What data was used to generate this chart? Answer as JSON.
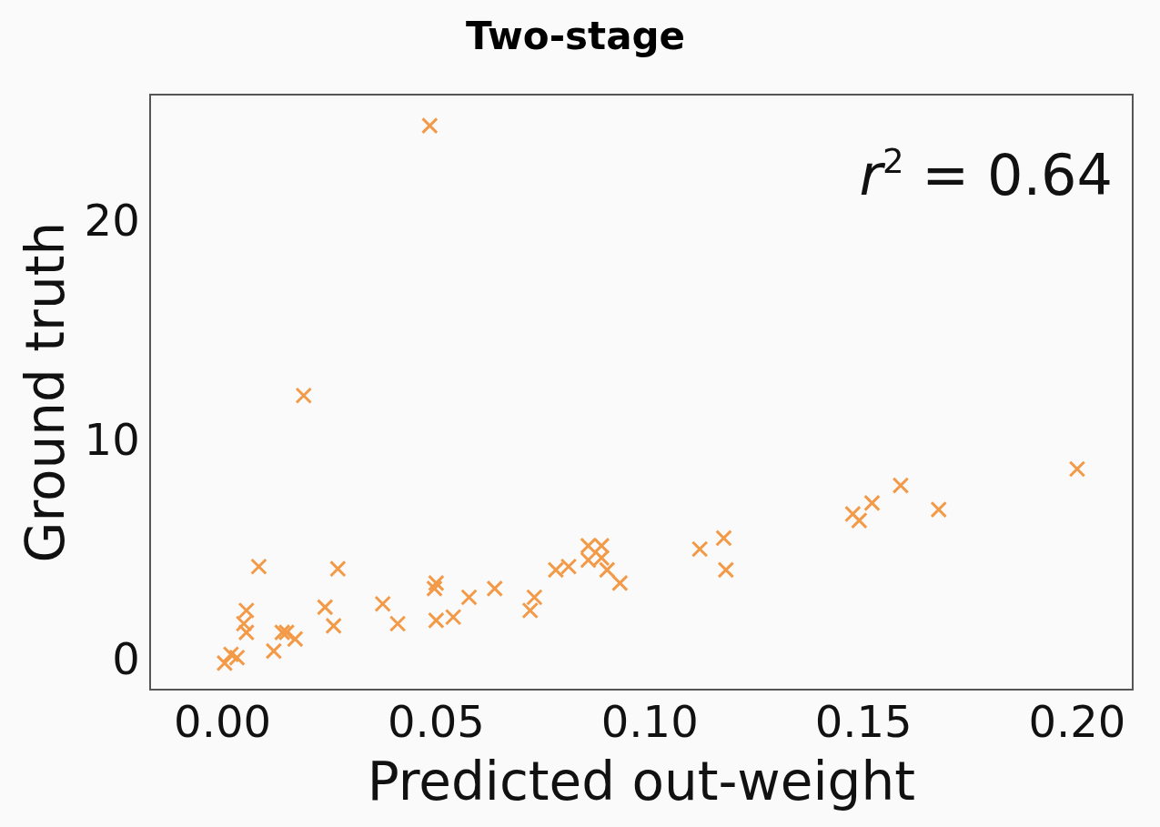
{
  "chart_data": {
    "type": "scatter",
    "title": "Two-stage",
    "xlabel": "Predicted out-weight",
    "ylabel": "Ground truth",
    "annotations": [
      "r$^{2}$ = 0.64"
    ],
    "xlim": [
      -0.017,
      0.213
    ],
    "xticks": [
      {
        "value": 0,
        "label": "0.00"
      },
      {
        "value": 0.05,
        "label": "0.05"
      },
      {
        "value": 0.1,
        "label": "0.10"
      },
      {
        "value": 0.15,
        "label": "0.15"
      },
      {
        "value": 0.2,
        "label": "0.20"
      }
    ],
    "ylim": [
      -1.2,
      25.9
    ],
    "yticks": [
      0,
      10,
      20
    ],
    "grid": false,
    "legend": false,
    "marker": "cross",
    "series": [
      {
        "color": "#f39a48",
        "x": [
          0.0485,
          0.019,
          0.0085,
          0.027,
          0.0056,
          0.005,
          0.0056,
          0.0034,
          0.002,
          0.0005,
          0.015,
          0.017,
          0.012,
          0.014,
          0.024,
          0.026,
          0.0375,
          0.041,
          0.05,
          0.0496,
          0.05,
          0.054,
          0.0577,
          0.0637,
          0.073,
          0.072,
          0.078,
          0.081,
          0.0856,
          0.0887,
          0.0856,
          0.0887,
          0.09,
          0.093,
          0.1117,
          0.1173,
          0.1178,
          0.1475,
          0.152,
          0.149,
          0.1587,
          0.1676,
          0.2
        ],
        "values": [
          24.5,
          12.2,
          4.4,
          4.3,
          2.4,
          1.8,
          1.4,
          0.25,
          0.4,
          0,
          1.4,
          1.1,
          0.55,
          1.4,
          2.55,
          1.7,
          2.7,
          1.8,
          3.65,
          3.4,
          1.95,
          2.1,
          3,
          3.4,
          3,
          2.4,
          4.25,
          4.4,
          5.35,
          5.35,
          4.7,
          4.8,
          4.25,
          3.65,
          5.2,
          5.7,
          4.25,
          6.8,
          7.3,
          6.5,
          8.1,
          7,
          8.85
        ]
      }
    ]
  }
}
